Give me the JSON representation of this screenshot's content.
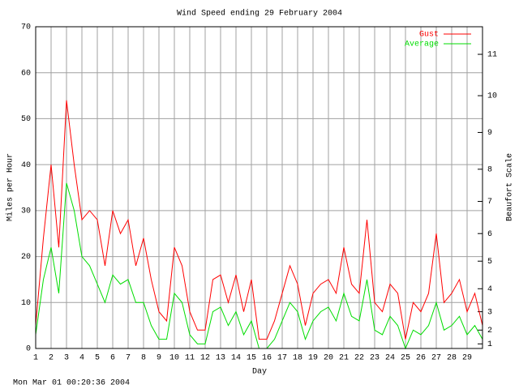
{
  "chart_data": {
    "type": "line",
    "title": "Wind Speed ending 29 February 2004",
    "x_label": "Day",
    "y_label": "Miles per Hour",
    "y2_label": "Beaufort Scale",
    "footer": "Mon Mar 01 00:20:36 2004",
    "x": [
      1,
      1.5,
      2,
      2.5,
      3,
      3.5,
      4,
      4.5,
      5,
      5.5,
      6,
      6.5,
      7,
      7.5,
      8,
      8.5,
      9,
      9.5,
      10,
      10.5,
      11,
      11.5,
      12,
      12.5,
      13,
      13.5,
      14,
      14.5,
      15,
      15.5,
      16,
      16.5,
      17,
      17.5,
      18,
      18.5,
      19,
      19.5,
      20,
      20.5,
      21,
      21.5,
      22,
      22.5,
      23,
      23.5,
      24,
      24.5,
      25,
      25.5,
      26,
      26.5,
      27,
      27.5,
      28,
      28.5,
      29,
      29.5,
      30
    ],
    "series": [
      {
        "name": "Gust",
        "color": "#ff0000",
        "values": [
          5,
          24,
          40,
          22,
          54,
          40,
          28,
          30,
          28,
          18,
          30,
          25,
          28,
          18,
          24,
          15,
          8,
          6,
          22,
          18,
          8,
          4,
          4,
          15,
          16,
          10,
          16,
          8,
          15,
          2,
          2,
          6,
          12,
          18,
          14,
          5,
          12,
          14,
          15,
          12,
          22,
          14,
          12,
          28,
          10,
          8,
          14,
          12,
          2,
          10,
          8,
          12,
          25,
          10,
          12,
          15,
          8,
          12,
          5
        ]
      },
      {
        "name": "Average",
        "color": "#00dd00",
        "values": [
          3,
          15,
          22,
          12,
          36,
          30,
          20,
          18,
          14,
          10,
          16,
          14,
          15,
          10,
          10,
          5,
          2,
          2,
          12,
          10,
          3,
          1,
          1,
          8,
          9,
          5,
          8,
          3,
          6,
          0,
          0,
          2,
          6,
          10,
          8,
          2,
          6,
          8,
          9,
          6,
          12,
          7,
          6,
          15,
          4,
          3,
          7,
          5,
          0,
          4,
          3,
          5,
          10,
          4,
          5,
          7,
          3,
          5,
          2
        ]
      }
    ],
    "xlim": [
      1,
      30
    ],
    "xticks": [
      1,
      2,
      3,
      4,
      5,
      6,
      7,
      8,
      9,
      10,
      11,
      12,
      13,
      14,
      15,
      16,
      17,
      18,
      19,
      20,
      21,
      22,
      23,
      24,
      25,
      26,
      27,
      28,
      29
    ],
    "ylim": [
      0,
      70
    ],
    "yticks": [
      0,
      10,
      20,
      30,
      40,
      50,
      60,
      70
    ],
    "y2lim": [
      0,
      70
    ],
    "y2ticks": [
      1,
      {
        "value": 4,
        "label": "2"
      },
      {
        "value": 8,
        "label": "3"
      },
      {
        "value": 13,
        "label": "4"
      },
      {
        "value": 19,
        "label": "5"
      },
      {
        "value": 25,
        "label": "6"
      },
      {
        "value": 32,
        "label": "7"
      },
      {
        "value": 39,
        "label": "8"
      },
      {
        "value": 47,
        "label": "9"
      },
      {
        "value": 55,
        "label": "10"
      },
      {
        "value": 64,
        "label": "11"
      }
    ],
    "grid": true,
    "legend": "top-right"
  }
}
